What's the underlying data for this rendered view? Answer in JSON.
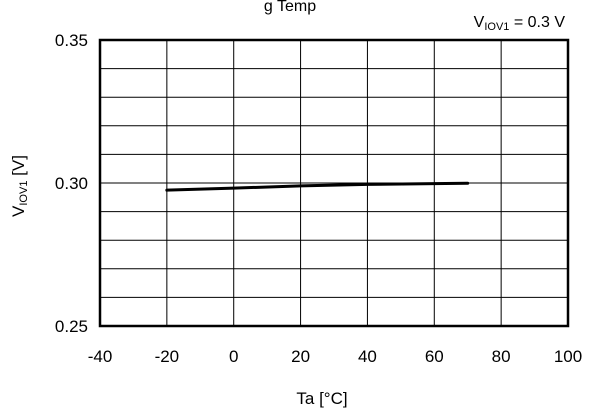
{
  "chart_data": {
    "type": "line",
    "title": "g Temp",
    "annotation": {
      "main": "V",
      "sub": "IOV1",
      "rest": " = 0.3 V"
    },
    "ylabel": {
      "main": "V",
      "sub": "IOV1",
      "rest": " [V]"
    },
    "xlabel": "Ta [°C]",
    "xlim": [
      -40,
      100
    ],
    "ylim": [
      0.25,
      0.35
    ],
    "x_ticks": [
      "-40",
      "-20",
      "0",
      "20",
      "40",
      "60",
      "80",
      "100"
    ],
    "y_ticks": [
      "0.35",
      "0.30",
      "0.25"
    ],
    "x_grid_step": 20,
    "y_grid_divisions": 10,
    "grid": true,
    "series": [
      {
        "x": [
          -20,
          0,
          20,
          40,
          60,
          70
        ],
        "y": [
          0.2975,
          0.2982,
          0.299,
          0.2995,
          0.2998,
          0.2999
        ]
      }
    ],
    "line_color": "#000000"
  }
}
